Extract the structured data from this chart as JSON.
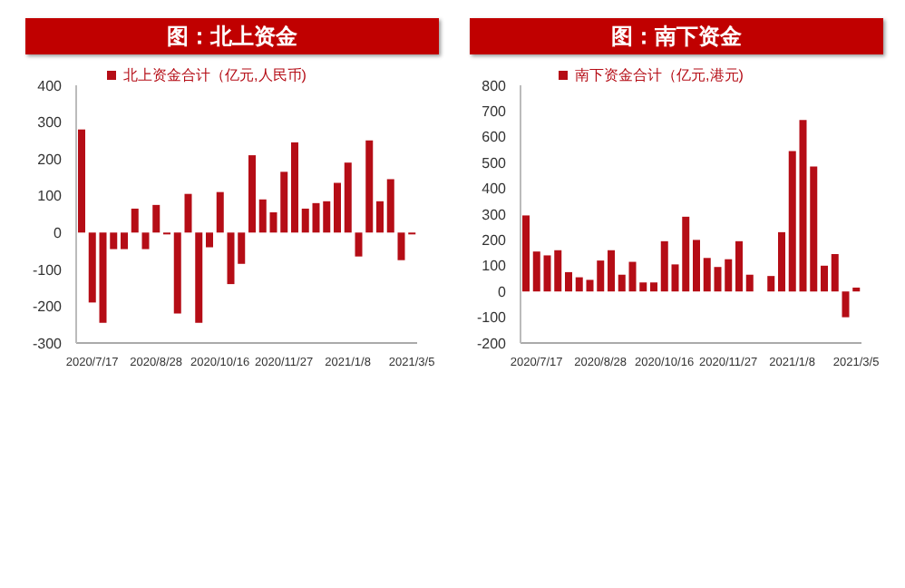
{
  "chart_data": [
    {
      "type": "bar",
      "title": "图：北上资金",
      "categories": [
        null,
        "2020/7/17",
        null,
        null,
        null,
        null,
        null,
        "2020/8/28",
        null,
        null,
        null,
        null,
        null,
        "2020/10/16",
        null,
        null,
        null,
        null,
        null,
        "2020/11/27",
        null,
        null,
        null,
        null,
        null,
        "2021/1/8",
        null,
        null,
        null,
        null,
        null,
        "2021/3/5"
      ],
      "series": [
        {
          "name": "北上资金合计（亿元,人民币)",
          "color": "#b50d16",
          "values": [
            280,
            -190,
            -245,
            -45,
            -45,
            65,
            -45,
            75,
            -5,
            -220,
            105,
            -245,
            -40,
            110,
            -140,
            -85,
            210,
            90,
            55,
            165,
            245,
            65,
            80,
            85,
            135,
            190,
            -65,
            250,
            85,
            145,
            -75,
            -5
          ]
        }
      ],
      "ylim": [
        -300,
        400
      ],
      "yticks": [
        -300,
        -200,
        -100,
        0,
        100,
        200,
        300,
        400
      ],
      "legend": "top",
      "grid": false
    },
    {
      "type": "bar",
      "title": "图：南下资金",
      "categories": [
        null,
        "2020/7/17",
        null,
        null,
        null,
        null,
        null,
        "2020/8/28",
        null,
        null,
        null,
        null,
        null,
        "2020/10/16",
        null,
        null,
        null,
        null,
        null,
        "2020/11/27",
        null,
        null,
        null,
        null,
        null,
        "2021/1/8",
        null,
        null,
        null,
        null,
        null,
        "2021/3/5"
      ],
      "series": [
        {
          "name": "南下资金合计（亿元,港元)",
          "color": "#b50d16",
          "values": [
            295,
            155,
            140,
            160,
            75,
            55,
            45,
            120,
            160,
            65,
            115,
            35,
            35,
            195,
            105,
            290,
            200,
            130,
            95,
            125,
            195,
            65,
            null,
            60,
            230,
            545,
            665,
            485,
            100,
            145,
            -100,
            15
          ]
        }
      ],
      "ylim": [
        -200,
        800
      ],
      "yticks": [
        -200,
        -100,
        0,
        100,
        200,
        300,
        400,
        500,
        600,
        700,
        800
      ],
      "legend": "top",
      "grid": false
    }
  ]
}
